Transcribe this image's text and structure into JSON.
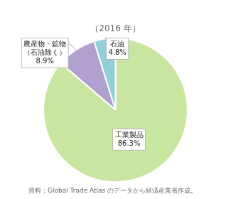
{
  "chart_data": {
    "type": "pie",
    "title": "（2016 年）",
    "categories": [
      "工業製品",
      "農産物・鉱物\n（石油除く）",
      "石油"
    ],
    "values": [
      86.3,
      8.9,
      4.8
    ],
    "value_labels": [
      "86.3%",
      "8.9%",
      "4.8%"
    ],
    "colors": [
      "#c8e6a0",
      "#b0a0d0",
      "#90d0d8"
    ],
    "data_labels": true,
    "footnote": "資料：Global Trade Atlas のデータから経済産業省作成。"
  }
}
